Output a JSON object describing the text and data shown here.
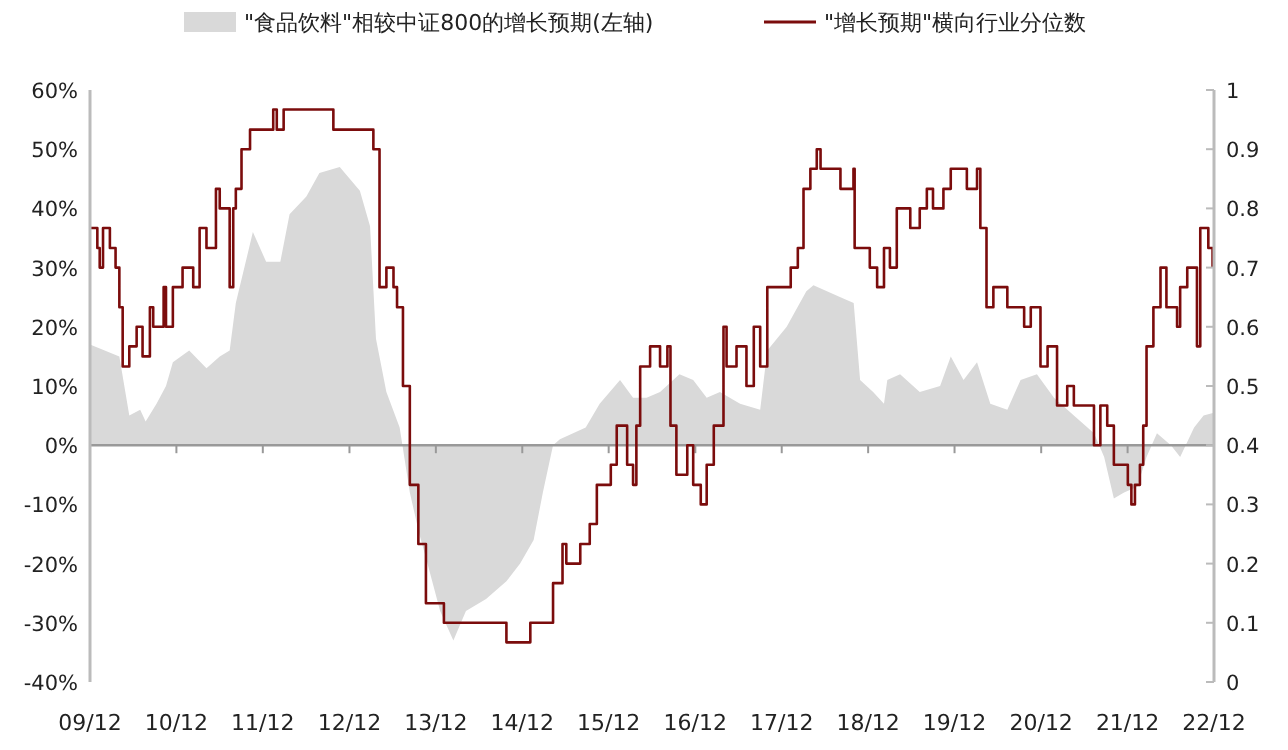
{
  "chart_data": {
    "type": "area",
    "xlim": [
      "2009-12",
      "2022-12"
    ],
    "xticks": [
      {
        "value": "2009-12",
        "label": "09/12"
      },
      {
        "value": "2010-12",
        "label": "10/12"
      },
      {
        "value": "2011-12",
        "label": "11/12"
      },
      {
        "value": "2012-12",
        "label": "12/12"
      },
      {
        "value": "2013-12",
        "label": "13/12"
      },
      {
        "value": "2014-12",
        "label": "14/12"
      },
      {
        "value": "2015-12",
        "label": "15/12"
      },
      {
        "value": "2016-12",
        "label": "16/12"
      },
      {
        "value": "2017-12",
        "label": "17/12"
      },
      {
        "value": "2018-12",
        "label": "18/12"
      },
      {
        "value": "2019-12",
        "label": "19/12"
      },
      {
        "value": "2020-12",
        "label": "20/12"
      },
      {
        "value": "2021-12",
        "label": "21/12"
      },
      {
        "value": "2022-12",
        "label": "22/12"
      }
    ],
    "ylim": [
      -40,
      60
    ],
    "yticks": [
      {
        "value": -40,
        "label": "-40%"
      },
      {
        "value": -30,
        "label": "-30%"
      },
      {
        "value": -20,
        "label": "-20%"
      },
      {
        "value": -10,
        "label": "-10%"
      },
      {
        "value": 0,
        "label": "0%"
      },
      {
        "value": 10,
        "label": "10%"
      },
      {
        "value": 20,
        "label": "20%"
      },
      {
        "value": 30,
        "label": "30%"
      },
      {
        "value": 40,
        "label": "40%"
      },
      {
        "value": 50,
        "label": "50%"
      },
      {
        "value": 60,
        "label": "60%"
      }
    ],
    "y2lim": [
      0,
      1
    ],
    "y2ticks": [
      0,
      0.1,
      0.2,
      0.3,
      0.4,
      0.5,
      0.6,
      0.7,
      0.8,
      0.9,
      1
    ],
    "grid": false,
    "legend": "top",
    "ref_lines": [
      {
        "axis": "y",
        "value": 0,
        "color": "#999999"
      }
    ],
    "series": [
      {
        "name": "\"食品饮料\"相较中证800的增长预期(左轴)",
        "color": "#d9d9d9",
        "x": [
          "2009-12-01",
          "2010-04-04",
          "2010-05-16",
          "2010-07-01",
          "2010-07-24",
          "2010-09-08",
          "2010-10-18",
          "2010-11-16",
          "2011-01-24",
          "2011-04-07",
          "2011-06-02",
          "2011-07-14",
          "2011-08-09",
          "2011-10-20",
          "2011-12-15",
          "2012-02-13",
          "2012-03-23",
          "2012-06-02",
          "2012-07-27",
          "2012-10-21",
          "2013-01-14",
          "2013-02-26",
          "2013-03-23",
          "2013-05-06",
          "2013-07-01",
          "2013-08-13",
          "2013-09-22",
          "2013-10-20",
          "2013-12-19",
          "2014-02-13",
          "2014-04-07",
          "2014-07-01",
          "2014-09-25",
          "2014-11-22",
          "2015-01-18",
          "2015-02-26",
          "2015-04-10",
          "2015-05-09",
          "2015-08-26",
          "2015-10-24",
          "2016-01-18",
          "2016-03-13",
          "2016-05-09",
          "2016-07-05",
          "2016-09-25",
          "2016-11-22",
          "2017-01-18",
          "2017-03-15",
          "2017-06-08",
          "2017-09-01",
          "2017-10-01",
          "2017-12-22",
          "2018-03-15",
          "2018-04-14",
          "2018-08-06",
          "2018-10-01",
          "2018-10-28",
          "2018-12-22",
          "2019-02-06",
          "2019-02-20",
          "2019-04-15",
          "2019-07-07",
          "2019-10-01",
          "2019-11-15",
          "2020-01-08",
          "2020-03-05",
          "2020-04-30",
          "2020-07-11",
          "2020-09-05",
          "2020-11-13",
          "2021-01-24",
          "2021-04-18",
          "2021-07-12",
          "2021-08-24",
          "2021-10-04",
          "2021-11-16",
          "2022-01-11",
          "2022-02-19",
          "2022-04-04",
          "2022-06-02",
          "2022-07-11",
          "2022-09-08",
          "2022-10-18",
          "2022-11-30"
        ],
        "values": [
          17,
          15,
          5,
          6,
          4,
          7,
          10,
          14,
          16,
          13,
          15,
          16,
          24,
          36,
          31,
          31,
          39,
          42,
          46,
          47,
          43,
          37,
          18,
          9,
          3,
          -8,
          -15,
          -19,
          -28,
          -33,
          -28,
          -26,
          -23,
          -20,
          -16,
          -8,
          0,
          1,
          3,
          7,
          11,
          8,
          8,
          9,
          12,
          11,
          8,
          9,
          7,
          6,
          16,
          20,
          26,
          27,
          25,
          24,
          11,
          9,
          7,
          11,
          12,
          9,
          10,
          15,
          11,
          14,
          7,
          6,
          11,
          12,
          8,
          5,
          2,
          -2,
          -9,
          -8,
          -7,
          -2,
          2,
          0,
          -2,
          3,
          5,
          5.5
        ]
      },
      {
        "name": "\"增长预期\"横向行业分位数",
        "type": "step",
        "axis": "y2",
        "color": "#7b0c0c",
        "x": [
          "2009-12-01",
          "2010-01-01",
          "2010-01-11",
          "2010-01-25",
          "2010-02-23",
          "2010-03-19",
          "2010-04-04",
          "2010-04-18",
          "2010-05-16",
          "2010-06-16",
          "2010-07-11",
          "2010-08-11",
          "2010-08-25",
          "2010-10-08",
          "2010-10-18",
          "2010-11-16",
          "2010-12-27",
          "2011-02-10",
          "2011-03-09",
          "2011-04-07",
          "2011-05-17",
          "2011-06-02",
          "2011-07-14",
          "2011-07-29",
          "2011-08-09",
          "2011-09-02",
          "2011-10-08",
          "2012-01-14",
          "2012-01-29",
          "2012-02-27",
          "2012-09-24",
          "2013-03-12",
          "2013-04-07",
          "2013-05-06",
          "2013-06-05",
          "2013-06-20",
          "2013-07-15",
          "2013-08-13",
          "2013-09-18",
          "2013-10-20",
          "2014-01-04",
          "2014-09-25",
          "2015-01-04",
          "2015-04-10",
          "2015-05-20",
          "2015-06-05",
          "2015-07-20",
          "2015-08-03",
          "2015-09-12",
          "2015-10-12",
          "2015-11-12",
          "2015-12-10",
          "2016-01-04",
          "2016-02-17",
          "2016-03-13",
          "2016-03-27",
          "2016-04-12",
          "2016-05-24",
          "2016-07-05",
          "2016-08-05",
          "2016-08-18",
          "2016-09-12",
          "2016-10-28",
          "2016-11-22",
          "2016-12-24",
          "2017-01-18",
          "2017-02-17",
          "2017-03-30",
          "2017-04-12",
          "2017-05-24",
          "2017-07-05",
          "2017-08-05",
          "2017-09-01",
          "2017-10-01",
          "2018-01-08",
          "2018-02-07",
          "2018-03-03",
          "2018-04-01",
          "2018-04-28",
          "2018-05-14",
          "2018-08-06",
          "2018-09-30",
          "2018-10-05",
          "2018-12-08",
          "2019-01-08",
          "2019-02-06",
          "2019-03-03",
          "2019-04-01",
          "2019-05-28",
          "2019-07-07",
          "2019-08-06",
          "2019-09-01",
          "2019-10-15",
          "2019-11-15",
          "2020-01-22",
          "2020-03-05",
          "2020-03-19",
          "2020-04-14",
          "2020-05-13",
          "2020-07-11",
          "2020-09-20",
          "2020-10-18",
          "2020-11-28",
          "2020-12-28",
          "2021-02-06",
          "2021-03-21",
          "2021-04-18",
          "2021-06-13",
          "2021-07-12",
          "2021-08-08",
          "2021-09-06",
          "2021-10-04",
          "2021-12-02",
          "2021-12-17",
          "2022-01-01",
          "2022-01-22",
          "2022-02-05",
          "2022-02-19",
          "2022-03-20",
          "2022-04-19",
          "2022-05-14",
          "2022-06-28",
          "2022-07-11",
          "2022-08-10",
          "2022-09-20",
          "2022-10-04",
          "2022-11-07",
          "2022-11-25"
        ],
        "values": [
          0.767,
          0.733,
          0.7,
          0.767,
          0.733,
          0.7,
          0.633,
          0.533,
          0.567,
          0.6,
          0.55,
          0.633,
          0.6,
          0.667,
          0.6,
          0.667,
          0.7,
          0.667,
          0.767,
          0.733,
          0.833,
          0.8,
          0.667,
          0.8,
          0.833,
          0.9,
          0.933,
          0.967,
          0.933,
          0.967,
          0.933,
          0.9,
          0.667,
          0.7,
          0.667,
          0.633,
          0.5,
          0.333,
          0.233,
          0.133,
          0.1,
          0.067,
          0.1,
          0.167,
          0.233,
          0.2,
          0.2,
          0.233,
          0.267,
          0.333,
          0.333,
          0.367,
          0.433,
          0.367,
          0.333,
          0.433,
          0.533,
          0.567,
          0.533,
          0.567,
          0.433,
          0.35,
          0.4,
          0.333,
          0.3,
          0.367,
          0.433,
          0.6,
          0.533,
          0.567,
          0.5,
          0.6,
          0.533,
          0.667,
          0.7,
          0.733,
          0.833,
          0.867,
          0.9,
          0.867,
          0.833,
          0.867,
          0.733,
          0.7,
          0.667,
          0.733,
          0.7,
          0.8,
          0.767,
          0.8,
          0.833,
          0.8,
          0.833,
          0.867,
          0.833,
          0.867,
          0.767,
          0.633,
          0.667,
          0.633,
          0.6,
          0.633,
          0.533,
          0.567,
          0.467,
          0.5,
          0.467,
          0.467,
          0.4,
          0.467,
          0.433,
          0.367,
          0.333,
          0.3,
          0.333,
          0.367,
          0.433,
          0.567,
          0.633,
          0.7,
          0.633,
          0.6,
          0.667,
          0.7,
          0.567,
          0.767,
          0.733,
          0.7
        ]
      }
    ]
  }
}
